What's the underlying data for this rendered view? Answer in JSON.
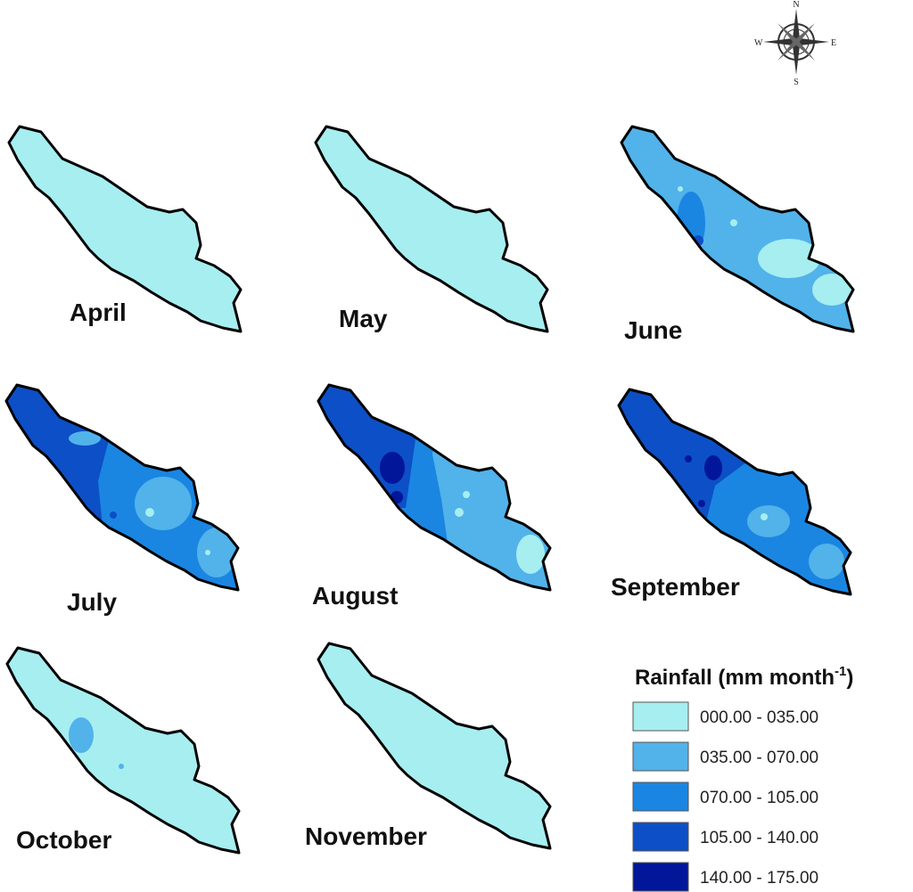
{
  "compass": {
    "north": "N",
    "south": "S",
    "east": "E",
    "west": "W"
  },
  "maps": [
    {
      "label": "April"
    },
    {
      "label": "May"
    },
    {
      "label": "June"
    },
    {
      "label": "July"
    },
    {
      "label": "August"
    },
    {
      "label": "September"
    },
    {
      "label": "October"
    },
    {
      "label": "November"
    }
  ],
  "legend": {
    "title": "Rainfall (mm month",
    "title_superscript": "-1",
    "title_end": ")",
    "entries": [
      {
        "label": "000.00 - 035.00",
        "color": "#a6eef0"
      },
      {
        "label": "035.00 - 070.00",
        "color": "#52b2ea"
      },
      {
        "label": "070.00 - 105.00",
        "color": "#1a86e2"
      },
      {
        "label": "105.00 - 140.00",
        "color": "#0d4fc6"
      },
      {
        "label": "140.00 - 175.00",
        "color": "#02169a"
      }
    ]
  }
}
